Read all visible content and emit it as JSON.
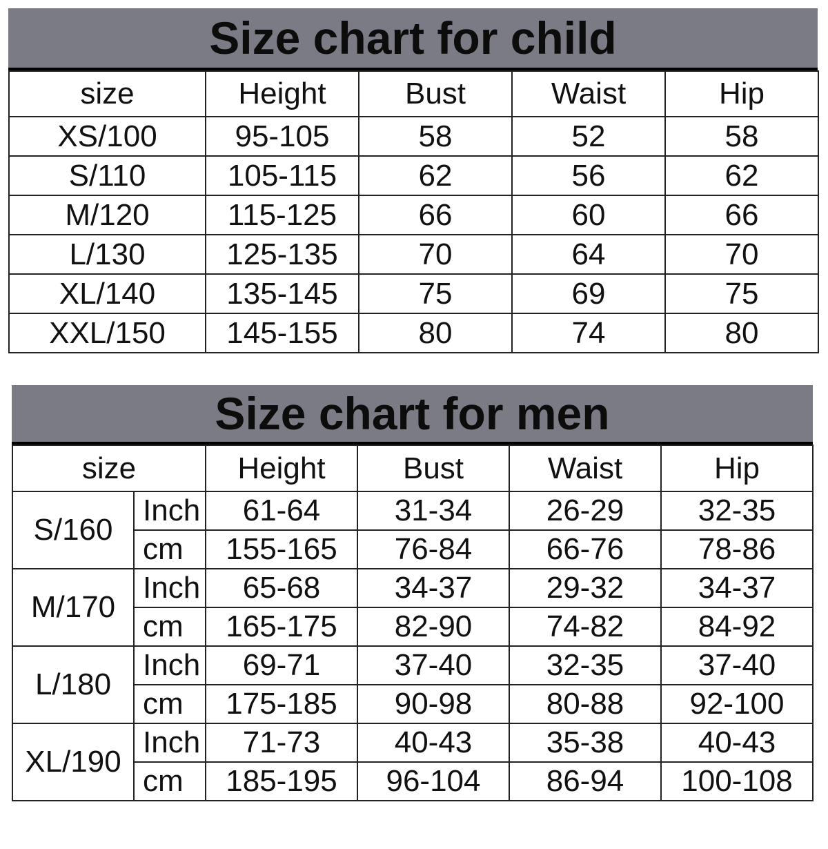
{
  "child": {
    "title": "Size chart for child",
    "headers": [
      "size",
      "Height",
      "Bust",
      "Waist",
      "Hip"
    ],
    "rows": [
      [
        "XS/100",
        "95-105",
        "58",
        "52",
        "58"
      ],
      [
        "S/110",
        "105-115",
        "62",
        "56",
        "62"
      ],
      [
        "M/120",
        "115-125",
        "66",
        "60",
        "66"
      ],
      [
        "L/130",
        "125-135",
        "70",
        "64",
        "70"
      ],
      [
        "XL/140",
        "135-145",
        "75",
        "69",
        "75"
      ],
      [
        "XXL/150",
        "145-155",
        "80",
        "74",
        "80"
      ]
    ]
  },
  "men": {
    "title": "Size chart for men",
    "headers": [
      "size",
      "Height",
      "Bust",
      "Waist",
      "Hip"
    ],
    "groups": [
      {
        "size": "S/160",
        "rows": [
          [
            "Inch",
            "61-64",
            "31-34",
            "26-29",
            "32-35"
          ],
          [
            "cm",
            "155-165",
            "76-84",
            "66-76",
            "78-86"
          ]
        ]
      },
      {
        "size": "M/170",
        "rows": [
          [
            "Inch",
            "65-68",
            "34-37",
            "29-32",
            "34-37"
          ],
          [
            "cm",
            "165-175",
            "82-90",
            "74-82",
            "84-92"
          ]
        ]
      },
      {
        "size": "L/180",
        "rows": [
          [
            "Inch",
            "69-71",
            "37-40",
            "32-35",
            "37-40"
          ],
          [
            "cm",
            "175-185",
            "90-98",
            "80-88",
            "92-100"
          ]
        ]
      },
      {
        "size": "XL/190",
        "rows": [
          [
            "Inch",
            "71-73",
            "40-43",
            "35-38",
            "40-43"
          ],
          [
            "cm",
            "185-195",
            "96-104",
            "86-94",
            "100-108"
          ]
        ]
      }
    ]
  },
  "colors": {
    "header_band": "#7b7b85",
    "border": "#222222"
  }
}
